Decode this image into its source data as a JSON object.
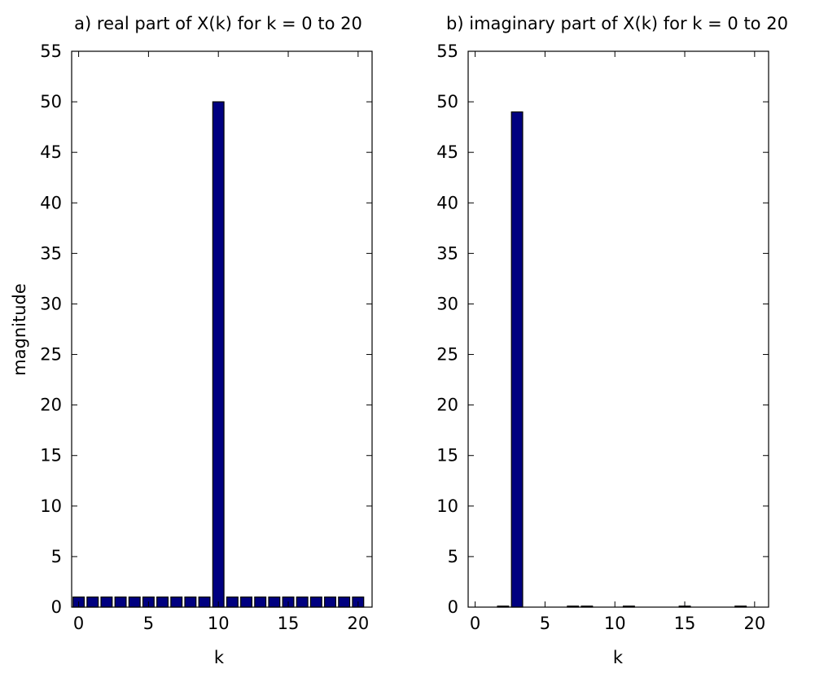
{
  "figure": {
    "background": "#ffffff",
    "bar_color": "#000080",
    "axis_color": "#000000"
  },
  "chart_data": [
    {
      "type": "bar",
      "title": "a) real part of X(k) for k = 0 to 20",
      "xlabel": "k",
      "ylabel": "magnitude",
      "xlim": [
        -0.5,
        21
      ],
      "ylim": [
        0,
        55
      ],
      "xticks": [
        0,
        5,
        10,
        15,
        20
      ],
      "yticks": [
        0,
        5,
        10,
        15,
        20,
        25,
        30,
        35,
        40,
        45,
        50,
        55
      ],
      "grid": false,
      "x": [
        0,
        1,
        2,
        3,
        4,
        5,
        6,
        7,
        8,
        9,
        10,
        11,
        12,
        13,
        14,
        15,
        16,
        17,
        18,
        19,
        20
      ],
      "values": [
        1,
        1,
        1,
        1,
        1,
        1,
        1,
        1,
        1,
        1,
        50,
        1,
        1,
        1,
        1,
        1,
        1,
        1,
        1,
        1,
        1
      ]
    },
    {
      "type": "bar",
      "title": "b) imaginary part of X(k) for k = 0 to 20",
      "xlabel": "k",
      "ylabel": "",
      "xlim": [
        -0.5,
        21
      ],
      "ylim": [
        0,
        55
      ],
      "xticks": [
        0,
        5,
        10,
        15,
        20
      ],
      "yticks": [
        0,
        5,
        10,
        15,
        20,
        25,
        30,
        35,
        40,
        45,
        50,
        55
      ],
      "grid": false,
      "x": [
        0,
        1,
        2,
        3,
        4,
        5,
        6,
        7,
        8,
        9,
        10,
        11,
        12,
        13,
        14,
        15,
        16,
        17,
        18,
        19,
        20
      ],
      "values": [
        0,
        0,
        0.1,
        49,
        0,
        0,
        0,
        0.1,
        0.1,
        0,
        0,
        0.1,
        0,
        0,
        0,
        0.1,
        0,
        0,
        0,
        0.1,
        0
      ]
    }
  ]
}
